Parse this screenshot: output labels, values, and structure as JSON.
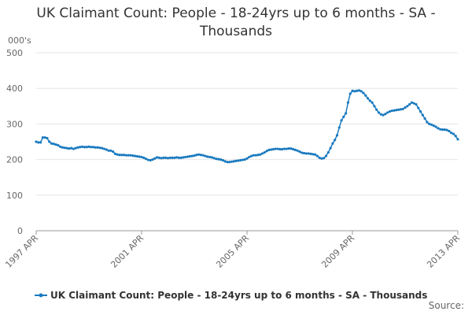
{
  "chart_data": {
    "type": "line",
    "title": "UK Claimant Count: People - 18-24yrs up to 6 months - SA - Thousands",
    "y_label": "000's",
    "source": "Source:",
    "categories": [
      "1997 APR",
      null,
      null,
      null,
      null,
      null,
      null,
      null,
      null,
      null,
      null,
      null,
      null,
      null,
      null,
      null,
      null,
      null,
      null,
      null,
      null,
      null,
      null,
      null,
      null,
      null,
      null,
      null,
      null,
      null,
      null,
      null,
      null,
      null,
      null,
      null,
      null,
      null,
      null,
      null,
      null,
      null,
      null,
      null,
      null,
      null,
      null,
      null,
      "2001 APR",
      null,
      null,
      null,
      null,
      null,
      null,
      null,
      null,
      null,
      null,
      null,
      null,
      null,
      null,
      null,
      null,
      null,
      null,
      null,
      null,
      null,
      null,
      null,
      null,
      null,
      null,
      null,
      null,
      null,
      null,
      null,
      null,
      null,
      null,
      null,
      null,
      null,
      null,
      null,
      null,
      null,
      null,
      null,
      null,
      null,
      null,
      null,
      "2005 APR",
      null,
      null,
      null,
      null,
      null,
      null,
      null,
      null,
      null,
      null,
      null,
      null,
      null,
      null,
      null,
      null,
      null,
      null,
      null,
      null,
      null,
      null,
      null,
      null,
      null,
      null,
      null,
      null,
      null,
      null,
      null,
      null,
      null,
      null,
      null,
      null,
      null,
      null,
      null,
      null,
      null,
      null,
      null,
      null,
      null,
      null,
      null,
      "2009 APR",
      null,
      null,
      null,
      null,
      null,
      null,
      null,
      null,
      null,
      null,
      null,
      null,
      null,
      null,
      null,
      null,
      null,
      null,
      null,
      null,
      null,
      null,
      null,
      null,
      null,
      null,
      null,
      null,
      null,
      null,
      null,
      null,
      null,
      null,
      null,
      null,
      null,
      null,
      null,
      null,
      null,
      null,
      null,
      null,
      null,
      null,
      null,
      "2013 APR"
    ],
    "series": [
      {
        "name": "UK Claimant Count: People - 18-24yrs up to 6 months - SA - Thousands",
        "color": "#1a7abf",
        "values": [
          250,
          248,
          248,
          262,
          262,
          260,
          250,
          245,
          244,
          242,
          240,
          236,
          234,
          233,
          232,
          231,
          232,
          230,
          232,
          234,
          235,
          236,
          235,
          235,
          236,
          235,
          235,
          234,
          234,
          233,
          232,
          230,
          228,
          225,
          225,
          222,
          216,
          214,
          213,
          213,
          213,
          212,
          212,
          212,
          211,
          210,
          209,
          208,
          207,
          205,
          202,
          199,
          198,
          200,
          203,
          206,
          205,
          204,
          205,
          205,
          204,
          205,
          205,
          205,
          206,
          205,
          205,
          206,
          207,
          208,
          209,
          210,
          211,
          213,
          214,
          213,
          212,
          210,
          208,
          207,
          206,
          204,
          202,
          201,
          200,
          198,
          195,
          193,
          193,
          194,
          195,
          196,
          197,
          198,
          199,
          200,
          203,
          207,
          210,
          212,
          212,
          213,
          214,
          217,
          220,
          224,
          227,
          228,
          229,
          230,
          230,
          229,
          229,
          230,
          230,
          231,
          231,
          229,
          227,
          225,
          222,
          219,
          218,
          217,
          217,
          216,
          215,
          214,
          210,
          205,
          203,
          204,
          210,
          220,
          232,
          245,
          255,
          268,
          290,
          310,
          320,
          330,
          360,
          385,
          393,
          392,
          393,
          394,
          392,
          387,
          380,
          372,
          365,
          360,
          350,
          340,
          332,
          327,
          325,
          328,
          332,
          335,
          337,
          338,
          339,
          340,
          341,
          342,
          346,
          350,
          355,
          360,
          358,
          355,
          345,
          335,
          325,
          315,
          305,
          300,
          298,
          295,
          292,
          288,
          285,
          284,
          284,
          283,
          280,
          275,
          272,
          266,
          257
        ]
      }
    ],
    "ylim": [
      0,
      500
    ],
    "yticks": [
      0,
      100,
      200,
      300,
      400,
      500
    ],
    "grid": true
  }
}
